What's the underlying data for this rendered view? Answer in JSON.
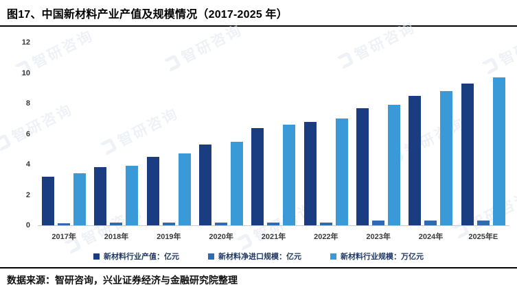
{
  "header": {
    "title": "图17、中国新材料产业产值及规模情况（2017-2025 年）"
  },
  "footer": {
    "source": "数据来源：智研咨询，兴业证券经济与金融研究院整理"
  },
  "watermark": {
    "text": "智研咨询",
    "color": "#e4e9ef"
  },
  "chart_data": {
    "type": "bar",
    "title": "中国新材料产业产值及规模情况（2017-2025 年）",
    "categories": [
      "2017年",
      "2018年",
      "2019年",
      "2020年",
      "2021年",
      "2022年",
      "2023年",
      "2024年",
      "2025年E"
    ],
    "series": [
      {
        "name": "新材料行业产值：亿元",
        "color": "#1a3c80",
        "values": [
          3.2,
          3.8,
          4.5,
          5.3,
          6.4,
          6.8,
          7.7,
          8.5,
          9.3
        ]
      },
      {
        "name": "新材料净进口规模：亿元",
        "color": "#2e6bb2",
        "values": [
          0.15,
          0.2,
          0.2,
          0.2,
          0.2,
          0.2,
          0.3,
          0.3,
          0.3
        ]
      },
      {
        "name": "新材料行业规模：万亿元",
        "color": "#3a9ad7",
        "values": [
          3.4,
          3.9,
          4.7,
          5.5,
          6.6,
          7.0,
          7.9,
          8.8,
          9.7
        ]
      }
    ],
    "xlabel": "",
    "ylabel": "",
    "ylim": [
      0,
      12
    ],
    "yticks": [
      0,
      2,
      4,
      6,
      8,
      10,
      12
    ],
    "grid": false,
    "legend_position": "bottom"
  }
}
